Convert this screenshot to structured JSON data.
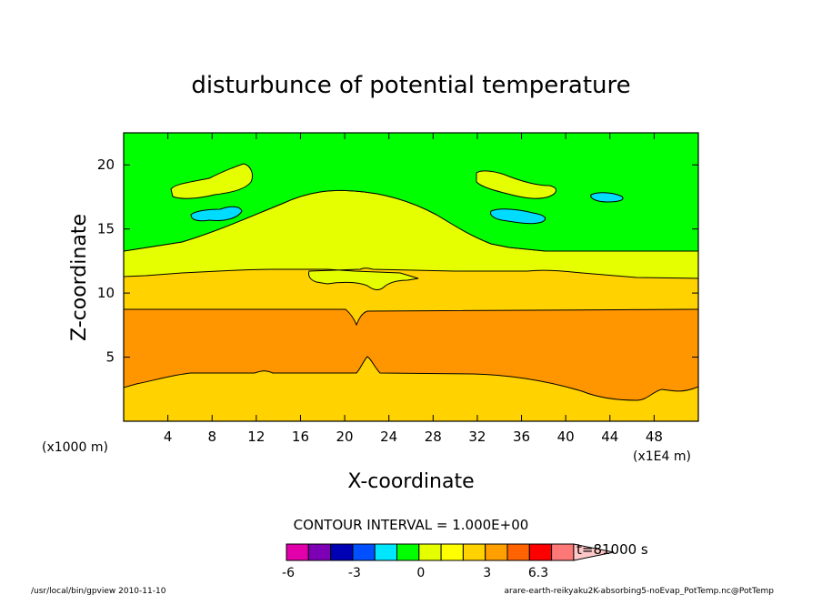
{
  "chart_data": {
    "type": "heatmap",
    "title": "disturbunce of potential temperature",
    "xlabel": "X-coordinate",
    "ylabel": "Z-coordinate",
    "x_unit_note": "(x1E4 m)",
    "y_unit_note": "(x1000 m)",
    "xlim": [
      0,
      52
    ],
    "ylim": [
      0,
      22.5
    ],
    "xticks": [
      "4",
      "8",
      "12",
      "16",
      "20",
      "24",
      "28",
      "32",
      "36",
      "40",
      "44",
      "48"
    ],
    "yticks": [
      "5",
      "10",
      "15",
      "20"
    ],
    "contour_interval": "CONTOUR INTERVAL = 1.000E+00",
    "time_label": "t=81000 s",
    "colorbar_labels": [
      "-6",
      "-3",
      "0",
      "3",
      "6.3"
    ],
    "colorbar_colors": [
      "#e100aa",
      "#7d00b4",
      "#0000b4",
      "#0050ff",
      "#00e6ff",
      "#00ff00",
      "#e6ff00",
      "#ffff00",
      "#ffd200",
      "#ffa000",
      "#ff6400",
      "#ff0000",
      "#ff7878",
      "#ffc8c8"
    ],
    "levels_shown": [
      {
        "value_range": "-1 to 0",
        "color": "#00dcff",
        "description": "small cool patches near z=16-19"
      },
      {
        "value_range": "0 to 1",
        "color": "#00ff00"
      },
      {
        "value_range": "1 to 2",
        "color": "#e6ff00"
      },
      {
        "value_range": "2 to 3",
        "color": "#ffd200"
      },
      {
        "value_range": "3 to 4",
        "color": "#ff9600"
      }
    ]
  },
  "footer": {
    "left": "/usr/local/bin/gpview  2010-11-10",
    "right": "arare-earth-reikyaku2K-absorbing5-noEvap_PotTemp.nc@PotTemp"
  }
}
